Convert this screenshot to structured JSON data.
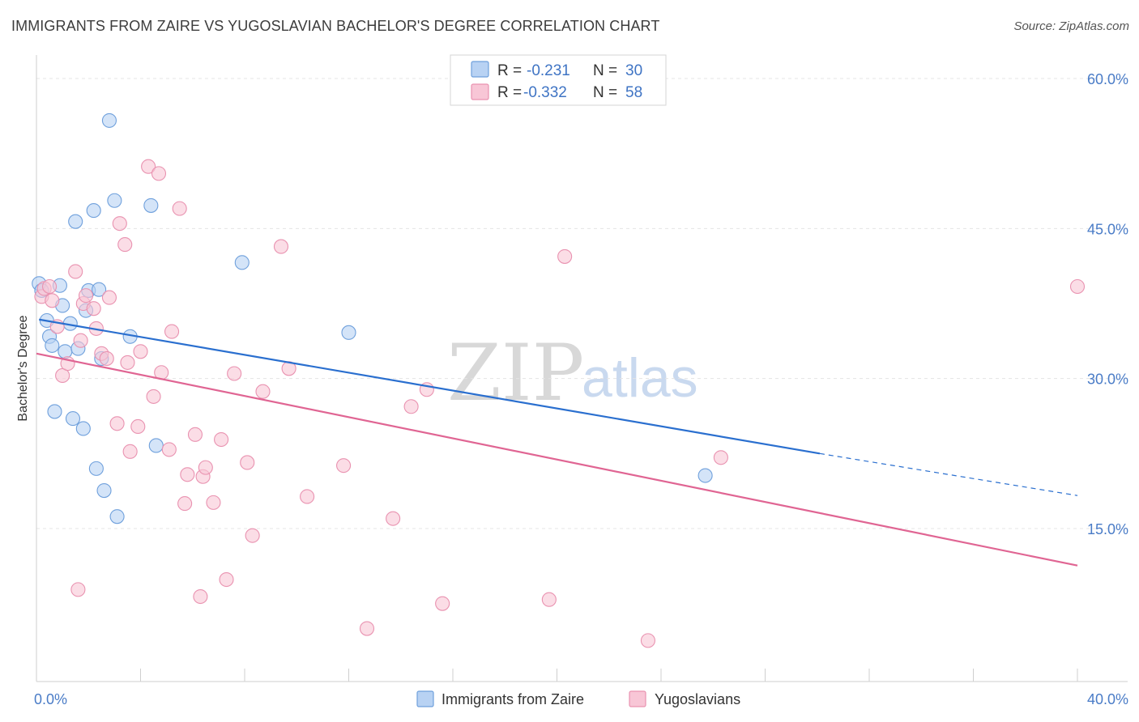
{
  "title": "IMMIGRANTS FROM ZAIRE VS YUGOSLAVIAN BACHELOR'S DEGREE CORRELATION CHART",
  "source": "Source: ZipAtlas.com",
  "watermark": {
    "zip": "ZIP",
    "atlas": "atlas"
  },
  "legend": {
    "r_label": "R =",
    "n_label": "N =",
    "rows": [
      {
        "r": "-0.231",
        "n": "30"
      },
      {
        "r": "-0.332",
        "n": "58"
      }
    ]
  },
  "chart_data": {
    "type": "scatter",
    "xlabel": "",
    "ylabel": "Bachelor's Degree",
    "xlim": [
      0,
      40
    ],
    "ylim": [
      0,
      63
    ],
    "x_tick_labels": [
      "0.0%",
      "40.0%"
    ],
    "y_ticks": [
      15,
      30,
      45,
      60
    ],
    "y_tick_labels": [
      "15.0%",
      "30.0%",
      "45.0%",
      "60.0%"
    ],
    "grid": true,
    "legend_position": "top-center",
    "colors": {
      "zaire_fill": "#b8d2f3",
      "zaire_stroke": "#6fa0dc",
      "zaire_line": "#2a6fcf",
      "yugo_fill": "#f8c6d6",
      "yugo_stroke": "#e992b0",
      "yugo_line": "#e06593",
      "axis_text": "#4a7cc7"
    },
    "series": [
      {
        "name": "Immigrants from Zaire",
        "points": [
          [
            0.1,
            39.5
          ],
          [
            0.2,
            38.8
          ],
          [
            0.4,
            35.8
          ],
          [
            0.5,
            34.2
          ],
          [
            0.6,
            33.3
          ],
          [
            0.7,
            26.7
          ],
          [
            0.9,
            39.3
          ],
          [
            1.0,
            37.3
          ],
          [
            1.1,
            32.7
          ],
          [
            1.3,
            35.5
          ],
          [
            1.4,
            26.0
          ],
          [
            1.5,
            45.7
          ],
          [
            1.6,
            33.0
          ],
          [
            1.8,
            25.0
          ],
          [
            1.9,
            36.8
          ],
          [
            2.0,
            38.8
          ],
          [
            2.2,
            46.8
          ],
          [
            2.3,
            21.0
          ],
          [
            2.4,
            38.9
          ],
          [
            2.5,
            32.0
          ],
          [
            2.6,
            18.8
          ],
          [
            2.8,
            55.8
          ],
          [
            3.0,
            47.8
          ],
          [
            3.1,
            16.2
          ],
          [
            3.6,
            34.2
          ],
          [
            4.4,
            47.3
          ],
          [
            4.6,
            23.3
          ],
          [
            7.9,
            41.6
          ],
          [
            12.0,
            34.6
          ],
          [
            25.7,
            20.3
          ]
        ],
        "trend": {
          "x0": 0.1,
          "y0": 35.9,
          "x1": 30.1,
          "y1": 22.5,
          "dash_x1": 40,
          "dash_y1": 18.3
        }
      },
      {
        "name": "Yugoslavians",
        "points": [
          [
            0.2,
            38.2
          ],
          [
            0.3,
            39.0
          ],
          [
            0.5,
            39.2
          ],
          [
            0.6,
            37.8
          ],
          [
            0.8,
            35.2
          ],
          [
            1.0,
            30.3
          ],
          [
            1.2,
            31.5
          ],
          [
            1.5,
            40.7
          ],
          [
            1.7,
            33.8
          ],
          [
            1.8,
            37.5
          ],
          [
            1.9,
            38.3
          ],
          [
            2.2,
            37.0
          ],
          [
            2.3,
            35.0
          ],
          [
            2.5,
            32.5
          ],
          [
            2.7,
            32.0
          ],
          [
            2.8,
            38.1
          ],
          [
            3.1,
            25.5
          ],
          [
            3.2,
            45.5
          ],
          [
            3.4,
            43.4
          ],
          [
            3.5,
            31.6
          ],
          [
            3.6,
            22.7
          ],
          [
            3.9,
            25.2
          ],
          [
            4.0,
            32.7
          ],
          [
            4.3,
            51.2
          ],
          [
            4.5,
            28.2
          ],
          [
            4.7,
            50.5
          ],
          [
            4.8,
            30.6
          ],
          [
            5.1,
            22.9
          ],
          [
            5.2,
            34.7
          ],
          [
            5.5,
            47.0
          ],
          [
            5.7,
            17.5
          ],
          [
            5.8,
            20.4
          ],
          [
            6.1,
            24.4
          ],
          [
            6.3,
            8.2
          ],
          [
            6.4,
            20.2
          ],
          [
            6.5,
            21.1
          ],
          [
            6.8,
            17.6
          ],
          [
            7.1,
            23.9
          ],
          [
            7.3,
            9.9
          ],
          [
            7.6,
            30.5
          ],
          [
            8.1,
            21.6
          ],
          [
            8.3,
            14.3
          ],
          [
            8.7,
            28.7
          ],
          [
            9.4,
            43.2
          ],
          [
            9.7,
            31.0
          ],
          [
            10.4,
            18.2
          ],
          [
            11.8,
            21.3
          ],
          [
            12.7,
            5.0
          ],
          [
            13.7,
            16.0
          ],
          [
            14.4,
            27.2
          ],
          [
            15.0,
            28.9
          ],
          [
            15.6,
            7.5
          ],
          [
            19.7,
            7.9
          ],
          [
            20.3,
            42.2
          ],
          [
            23.5,
            3.8
          ],
          [
            26.3,
            22.1
          ],
          [
            40.0,
            39.2
          ],
          [
            1.6,
            8.9
          ]
        ],
        "trend": {
          "x0": 0,
          "y0": 32.5,
          "x1": 40,
          "y1": 11.3
        }
      }
    ]
  },
  "bottom_legend": [
    {
      "label": "Immigrants from Zaire"
    },
    {
      "label": "Yugoslavians"
    }
  ]
}
